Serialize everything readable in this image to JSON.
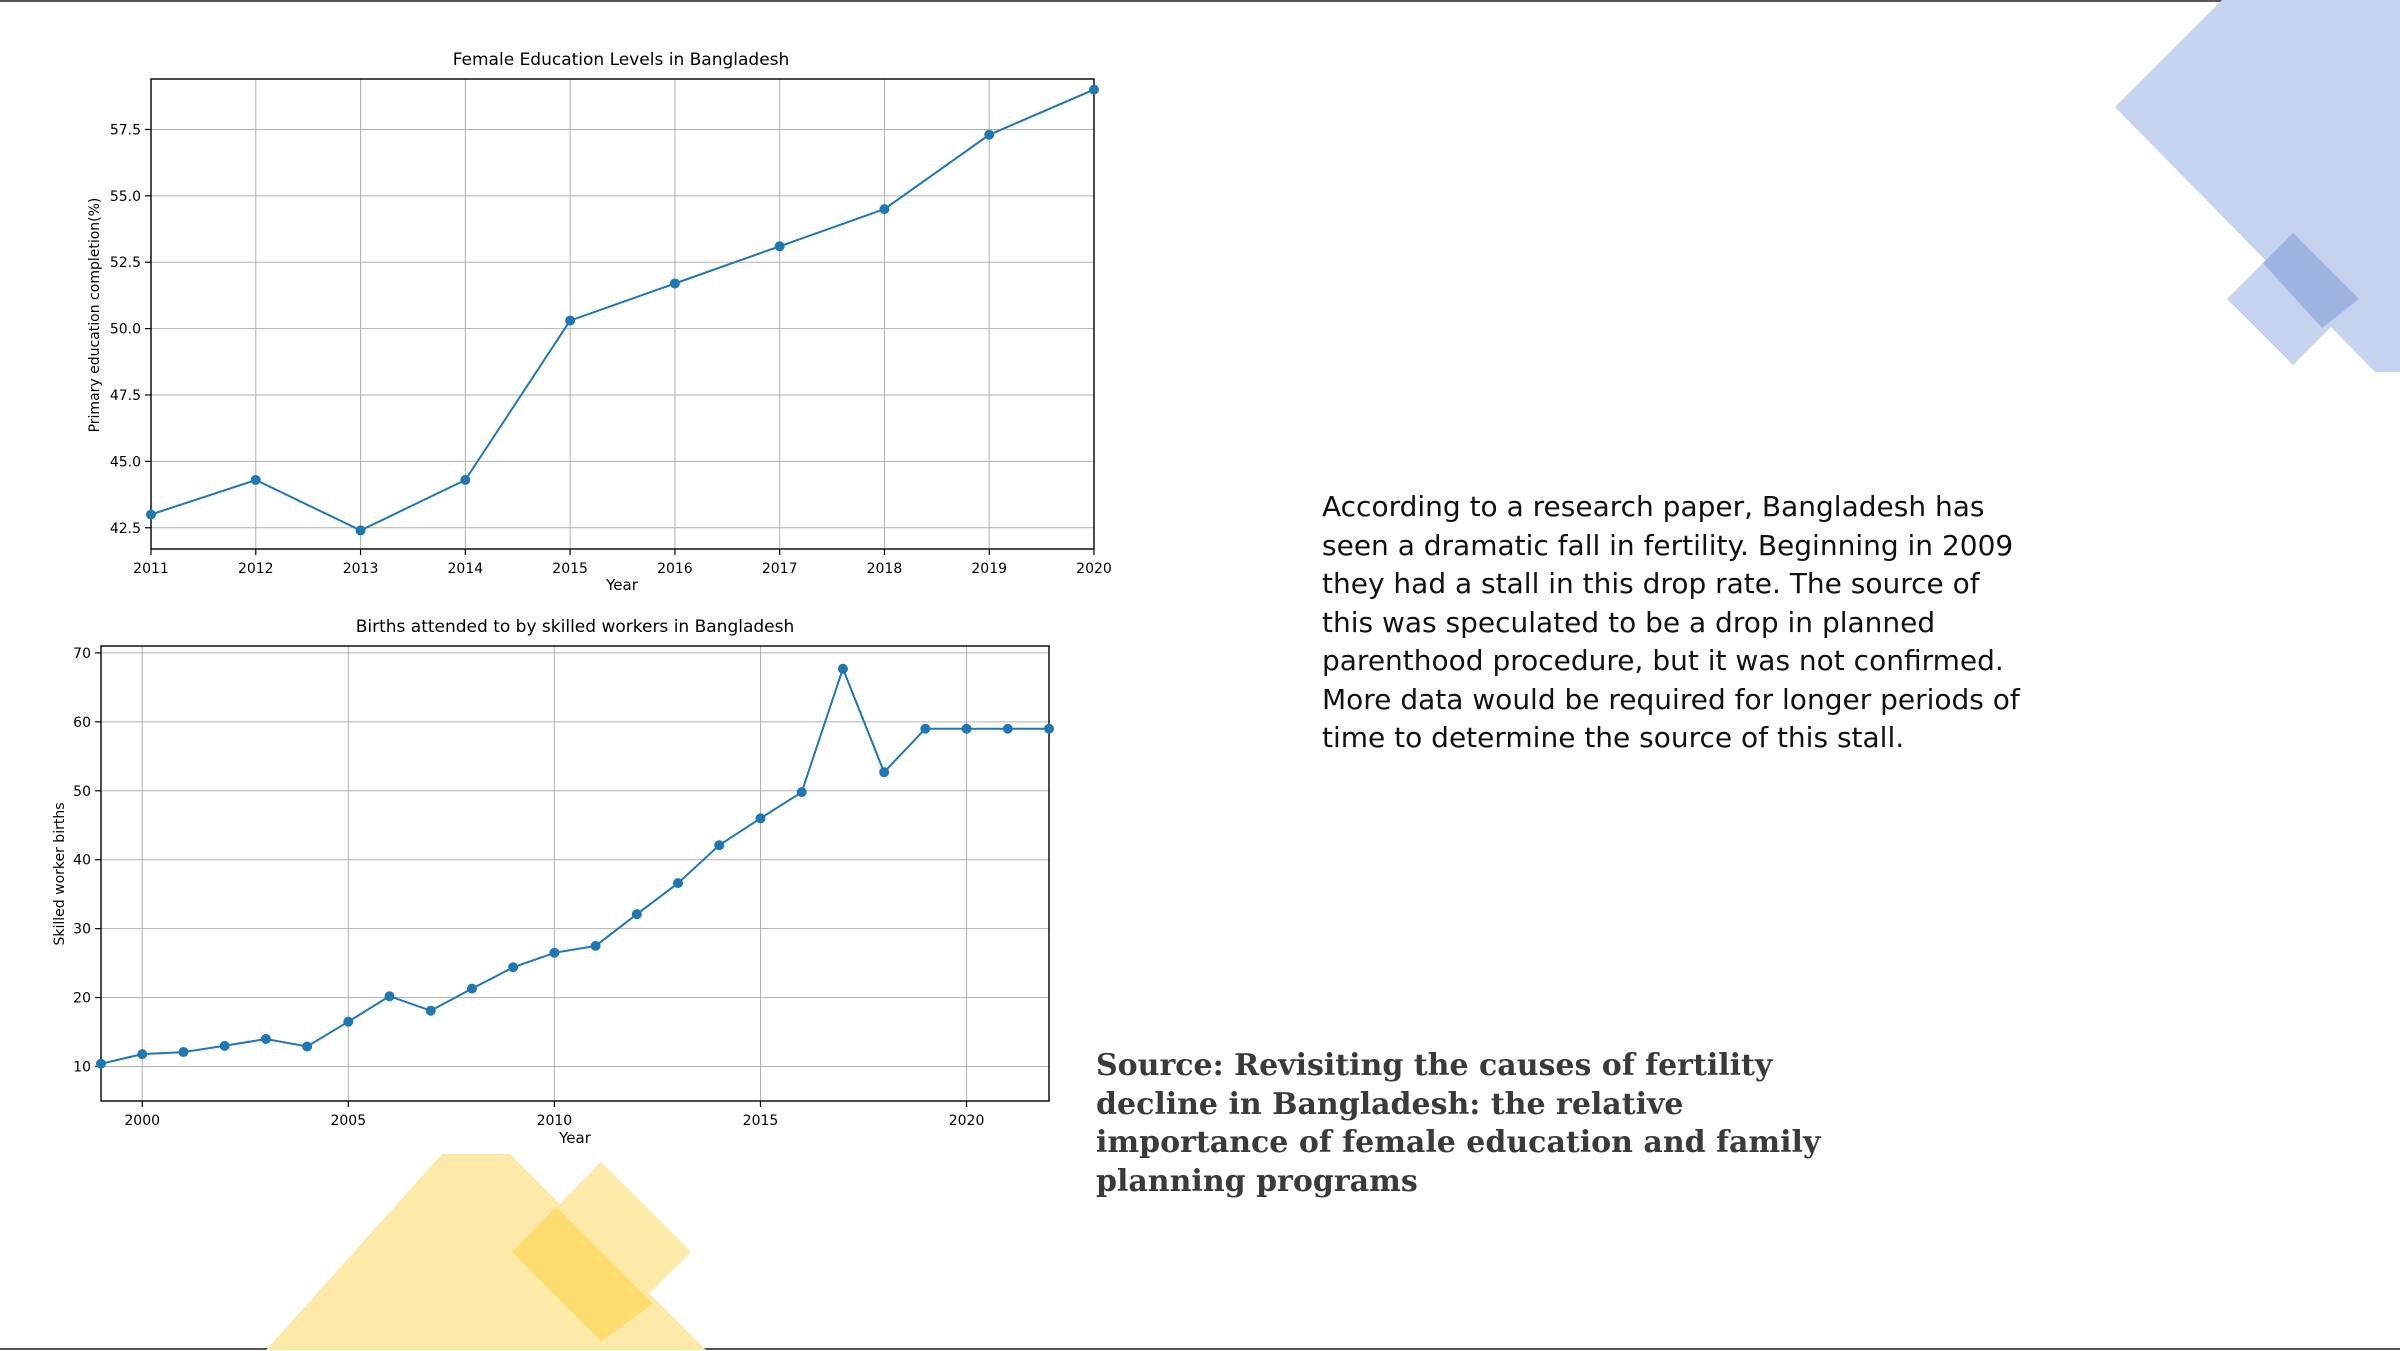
{
  "colors": {
    "line": "#1f77b4",
    "grid": "#b0b0b0",
    "deco_blue": "#c5d3ee",
    "deco_blue_dark": "#9fb3e2",
    "deco_yellow": "#fde9a8",
    "deco_yellow_dark": "#ffdc6e"
  },
  "body_text": "According to a research paper, Bangladesh has seen a dramatic fall in fertility. Beginning in 2009 they had a stall in this drop rate. The source of this was speculated to be a drop in planned parenthood procedure, but it was not confirmed. More data would be required for longer periods of time to determine the source of this stall.",
  "source_text": "Source: Revisiting the causes of fertility decline in Bangladesh: the relative importance of female education and family planning programs",
  "chart_data": [
    {
      "type": "line",
      "title": "Female Education Levels in Bangladesh",
      "xlabel": "Year",
      "ylabel": "Primary education completion(%)",
      "x": [
        2011,
        2012,
        2013,
        2014,
        2015,
        2016,
        2017,
        2018,
        2019,
        2020
      ],
      "values": [
        43.0,
        44.3,
        42.4,
        44.3,
        50.3,
        51.7,
        53.1,
        54.5,
        57.3,
        59.0
      ],
      "xlim": [
        2011,
        2020
      ],
      "ylim": [
        41.7,
        59.4
      ],
      "xticks": [
        2011,
        2012,
        2013,
        2014,
        2015,
        2016,
        2017,
        2018,
        2019,
        2020
      ],
      "yticks": [
        42.5,
        45.0,
        47.5,
        50.0,
        52.5,
        55.0,
        57.5
      ],
      "ytick_labels": [
        "42.5",
        "45.0",
        "47.5",
        "50.0",
        "52.5",
        "55.0",
        "57.5"
      ],
      "grid": true
    },
    {
      "type": "line",
      "title": "Births attended to by skilled workers in Bangladesh",
      "xlabel": "Year",
      "ylabel": "Skilled worker births",
      "x": [
        1999,
        2000,
        2001,
        2002,
        2003,
        2004,
        2005,
        2006,
        2007,
        2008,
        2009,
        2010,
        2011,
        2012,
        2013,
        2014,
        2015,
        2016,
        2017,
        2018,
        2019,
        2020,
        2021,
        2022
      ],
      "values": [
        10.4,
        11.8,
        12.1,
        13.0,
        14.0,
        12.9,
        16.5,
        20.2,
        18.1,
        21.3,
        24.4,
        26.5,
        27.5,
        32.1,
        36.6,
        42.1,
        46.0,
        49.8,
        67.7,
        52.7,
        59.0,
        59.0,
        59.0,
        59.0
      ],
      "xlim": [
        1999,
        2022
      ],
      "ylim": [
        5,
        71
      ],
      "xticks": [
        2000,
        2005,
        2010,
        2015,
        2020
      ],
      "yticks": [
        10,
        20,
        30,
        40,
        50,
        60,
        70
      ],
      "ytick_labels": [
        "10",
        "20",
        "30",
        "40",
        "50",
        "60",
        "70"
      ],
      "grid": true
    }
  ]
}
